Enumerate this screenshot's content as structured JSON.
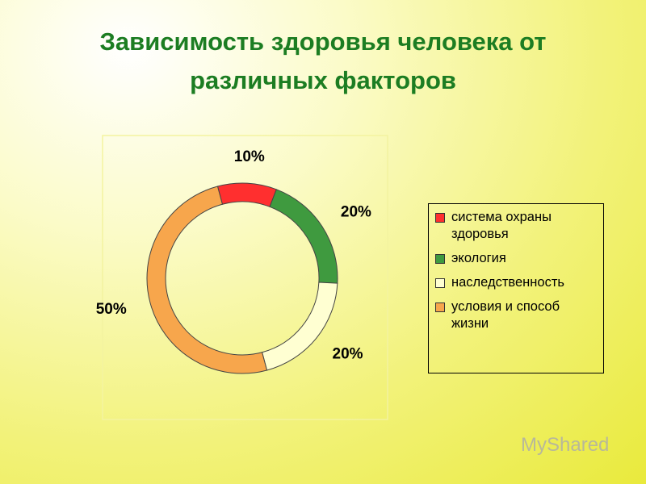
{
  "chart_data": {
    "type": "donut",
    "title": "Зависимость здоровья человека от различных факторов",
    "categories": [
      "система охраны здоровья",
      "экология",
      "наследственность",
      "условия и способ жизни"
    ],
    "values": [
      10,
      20,
      20,
      50
    ],
    "value_labels": [
      "10%",
      "20%",
      "20%",
      "50%"
    ],
    "colors": [
      "#ff2f2f",
      "#3f9a3f",
      "#ffffd2",
      "#f7a64c"
    ],
    "legend": "right"
  },
  "watermark": "MyShared"
}
